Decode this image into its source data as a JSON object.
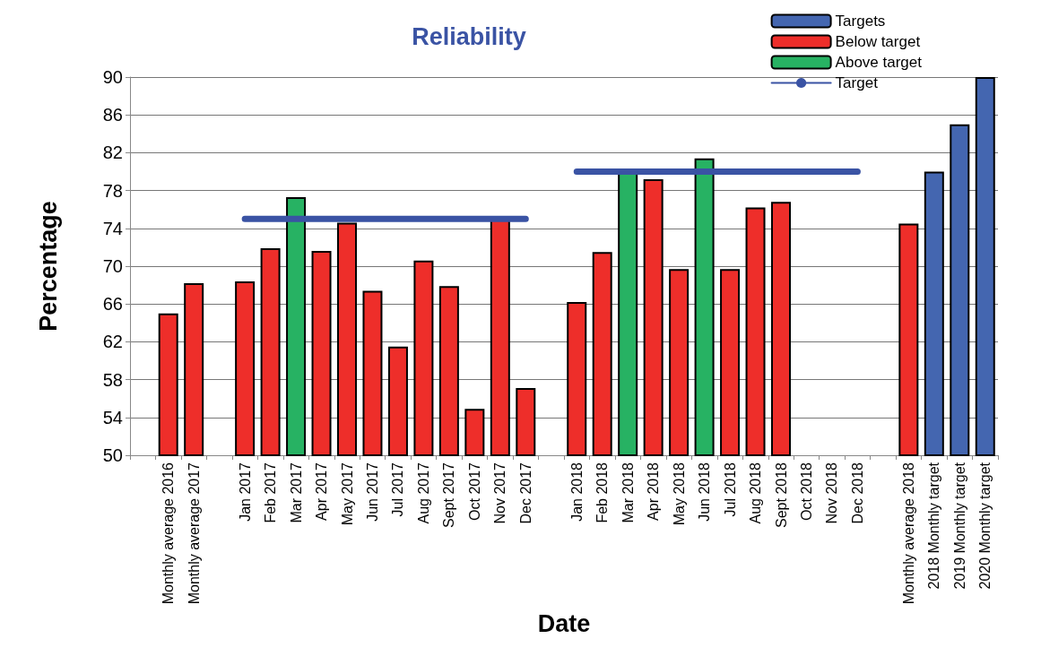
{
  "chart_data": {
    "type": "bar",
    "title": "Reliability",
    "xlabel": "Date",
    "ylabel": "Percentage",
    "categories": [
      null,
      "Monthly average 2016",
      "Monthly average 2017",
      null,
      "Jan 2017",
      "Feb 2017",
      "Mar 2017",
      "Apr 2017",
      "May 2017",
      "Jun 2017",
      "Jul 2017",
      "Aug 2017",
      "Sept 2017",
      "Oct 2017",
      "Nov 2017",
      "Dec 2017",
      null,
      "Jan 2018",
      "Feb 2018",
      "Mar 2018",
      "Apr 2018",
      "May 2018",
      "Jun 2018",
      "Jul 2018",
      "Aug 2018",
      "Sept 2018",
      "Oct 2018",
      "Nov 2018",
      "Dec 2018",
      null,
      "Monthly average 2018",
      "2018 Monthly target",
      "2019 Monthly target",
      "2020 Monthly target"
    ],
    "series": [
      {
        "name": "Targets",
        "color": "#4466b0",
        "values": [
          null,
          null,
          null,
          null,
          null,
          null,
          null,
          null,
          null,
          null,
          null,
          null,
          null,
          null,
          null,
          null,
          null,
          null,
          null,
          null,
          null,
          null,
          null,
          null,
          null,
          null,
          null,
          null,
          null,
          null,
          null,
          80,
          85,
          90
        ]
      },
      {
        "name": "Below target",
        "color": "#ee2e2a",
        "values": [
          null,
          65.0,
          68.2,
          null,
          68.4,
          71.9,
          null,
          71.6,
          74.6,
          67.4,
          61.5,
          70.6,
          67.9,
          54.9,
          75.0,
          57.1,
          null,
          66.2,
          71.5,
          null,
          79.2,
          69.7,
          null,
          69.7,
          76.2,
          76.8,
          null,
          null,
          null,
          null,
          74.5,
          null,
          null,
          null
        ]
      },
      {
        "name": "Above target",
        "color": "#27b263",
        "values": [
          50,
          null,
          null,
          null,
          null,
          null,
          77.3,
          null,
          null,
          null,
          null,
          null,
          null,
          null,
          null,
          null,
          null,
          null,
          null,
          80.0,
          null,
          null,
          81.4,
          null,
          null,
          null,
          50,
          50,
          50,
          null,
          null,
          null,
          null,
          null
        ]
      },
      {
        "name": "Target",
        "type": "line",
        "color": "#3a53a4",
        "values": [
          null,
          null,
          null,
          null,
          75,
          75,
          75,
          75,
          75,
          75,
          75,
          75,
          75,
          75,
          75,
          75,
          null,
          80,
          80,
          80,
          80,
          80,
          80,
          80,
          80,
          80,
          80,
          80,
          80,
          null,
          null,
          null,
          null,
          null
        ]
      }
    ],
    "ylim": [
      50,
      90
    ],
    "yticks": [
      50,
      54,
      58,
      62,
      66,
      70,
      74,
      78,
      82,
      86,
      90
    ],
    "grid": "y",
    "legend": "top right",
    "marker": "none",
    "line_style": "solid"
  }
}
